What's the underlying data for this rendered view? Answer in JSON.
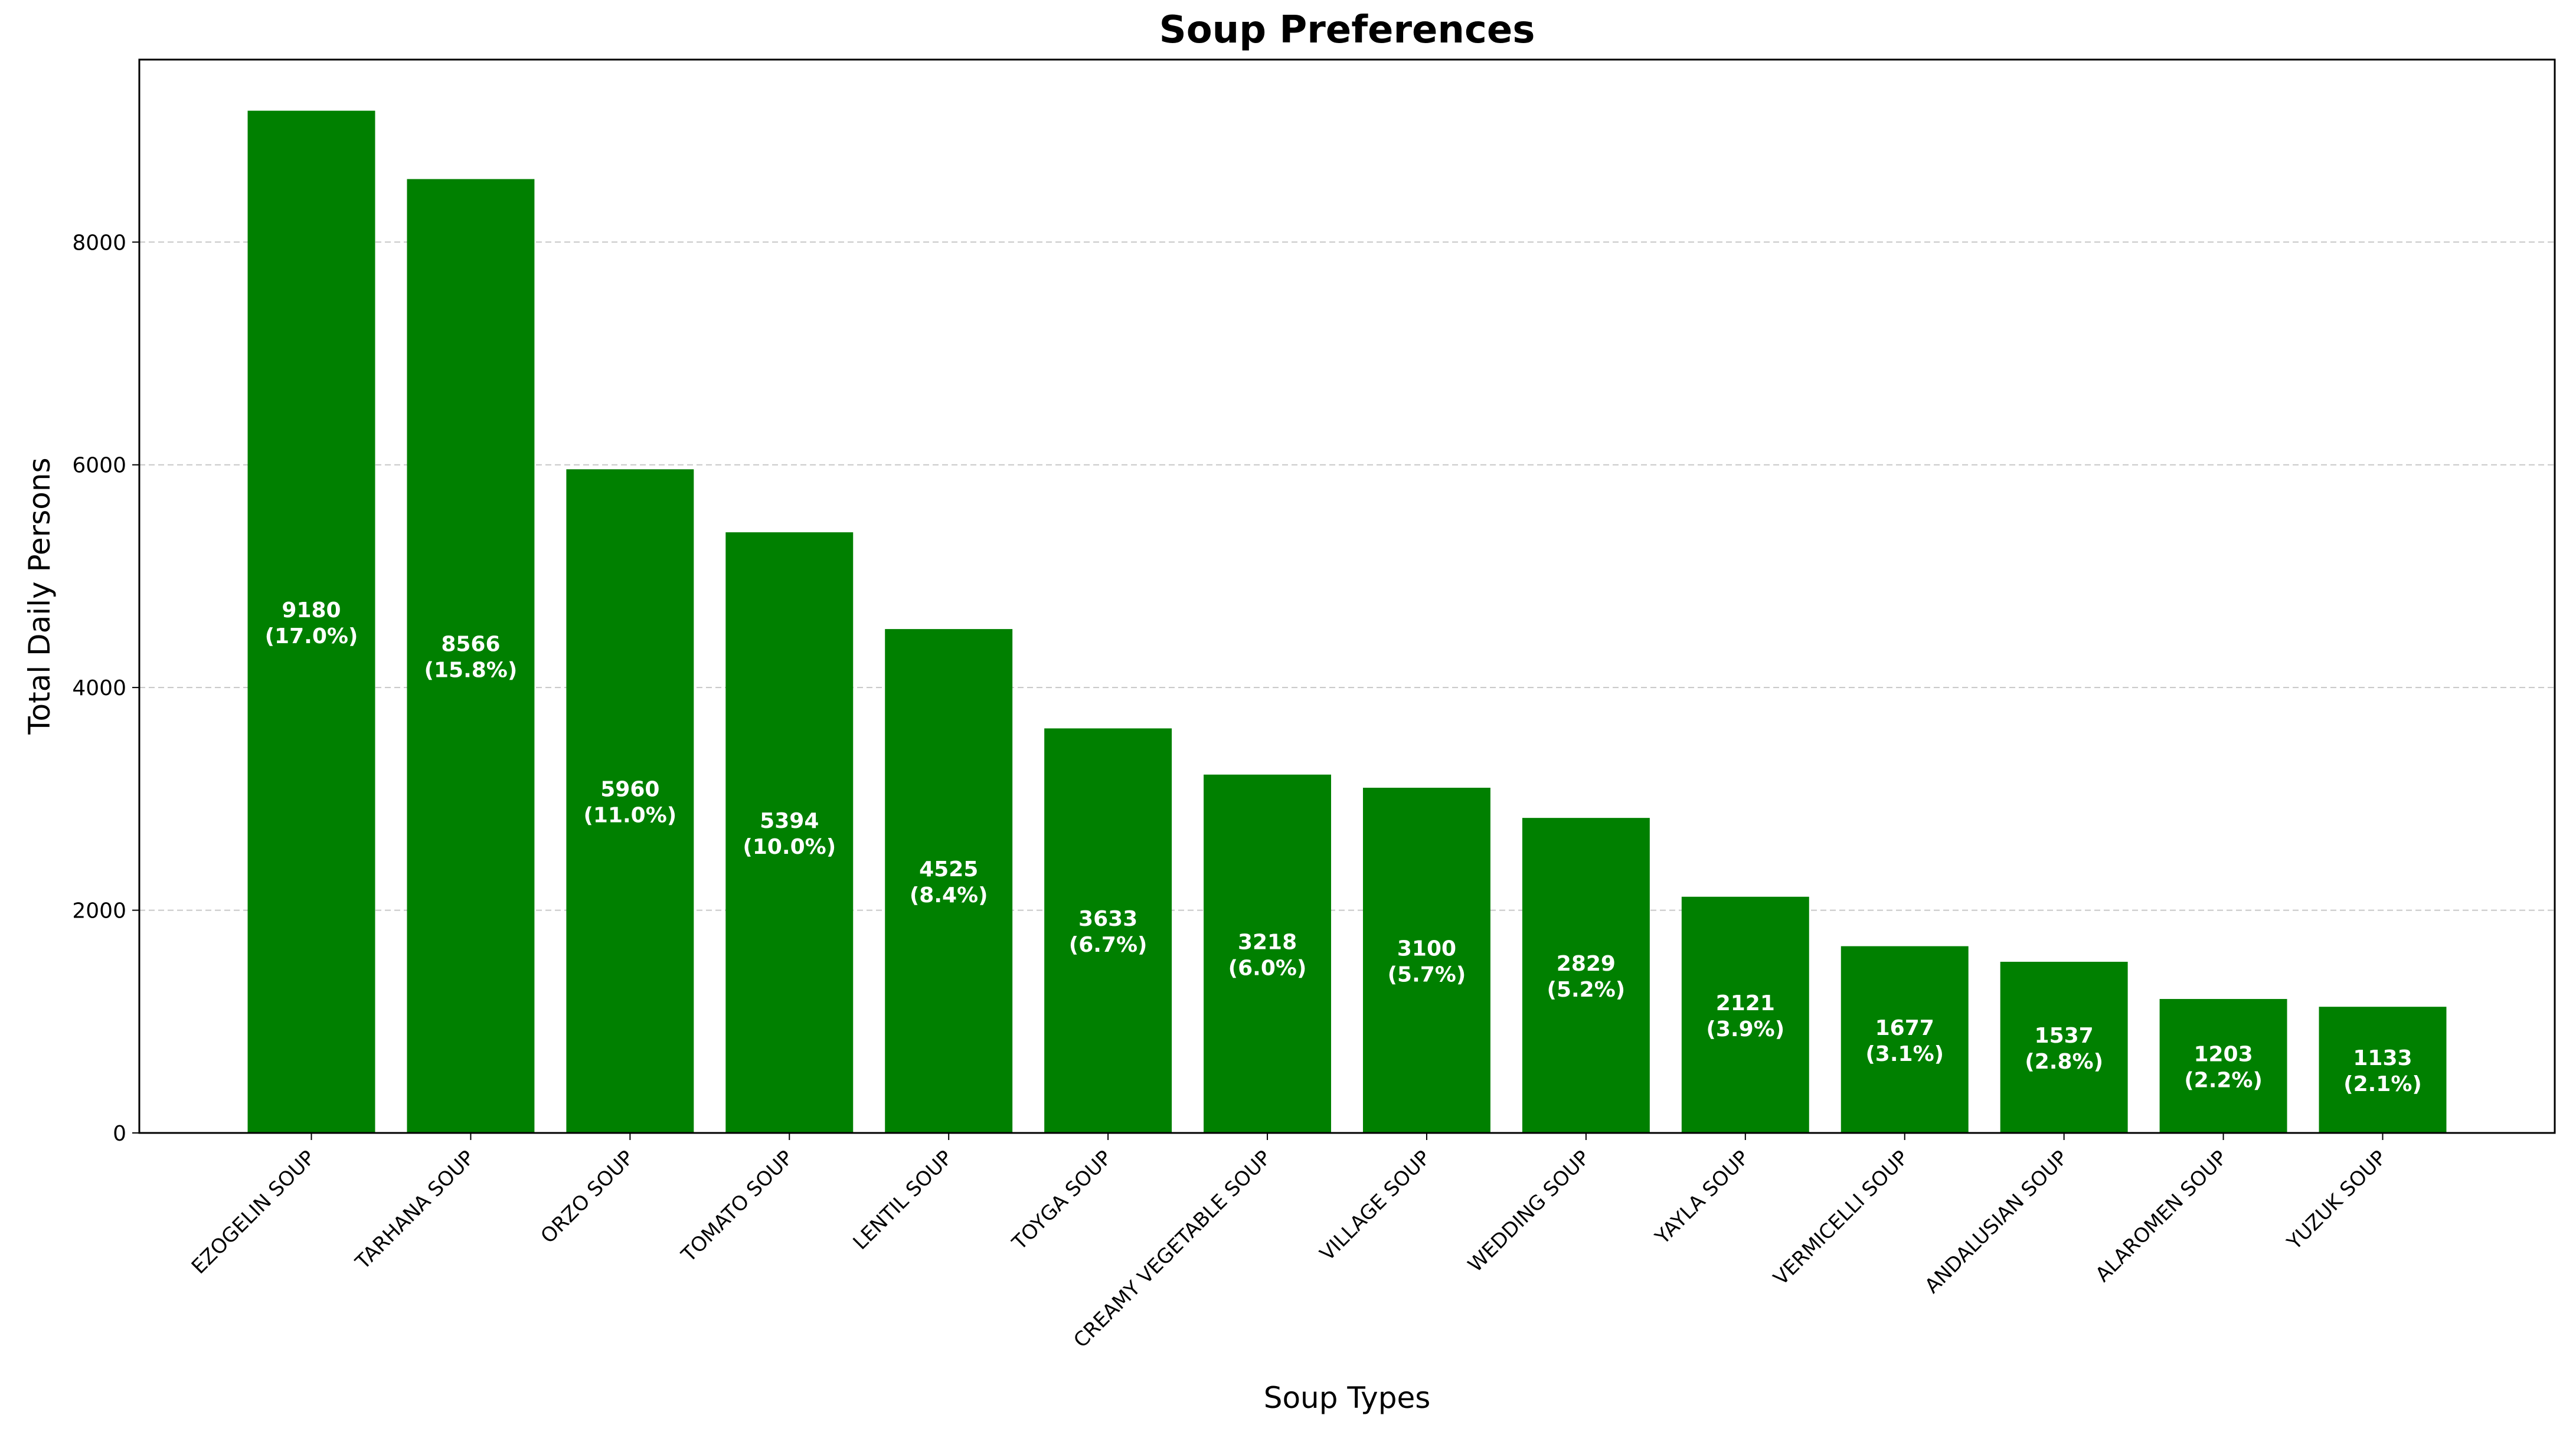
{
  "chart_data": {
    "type": "bar",
    "title": "Soup Preferences",
    "xlabel": "Soup Types",
    "ylabel": "Total Daily Persons",
    "categories": [
      "EZOGELIN SOUP",
      "TARHANA SOUP",
      "ORZO SOUP",
      "TOMATO SOUP",
      "LENTIL SOUP",
      "TOYGA SOUP",
      "CREAMY VEGETABLE SOUP",
      "VILLAGE SOUP",
      "WEDDING SOUP",
      "YAYLA SOUP",
      "VERMICELLI SOUP",
      "ANDALUSIAN SOUP",
      "ALAROMEN SOUP",
      "YUZUK SOUP"
    ],
    "values": [
      9180,
      8566,
      5960,
      5394,
      4525,
      3633,
      3218,
      3100,
      2829,
      2121,
      1677,
      1537,
      1203,
      1133
    ],
    "percent_labels": [
      "(17.0%)",
      "(15.8%)",
      "(11.0%)",
      "(10.0%)",
      "(8.4%)",
      "(6.7%)",
      "(6.0%)",
      "(5.7%)",
      "(5.2%)",
      "(3.9%)",
      "(3.1%)",
      "(2.8%)",
      "(2.2%)",
      "(2.1%)"
    ],
    "yticks": [
      0,
      2000,
      4000,
      6000,
      8000
    ],
    "ylim": [
      0,
      9639
    ],
    "grid": "y-dashed",
    "legend": "none",
    "bar_color": "#008000",
    "label_color": "#ffffff"
  }
}
